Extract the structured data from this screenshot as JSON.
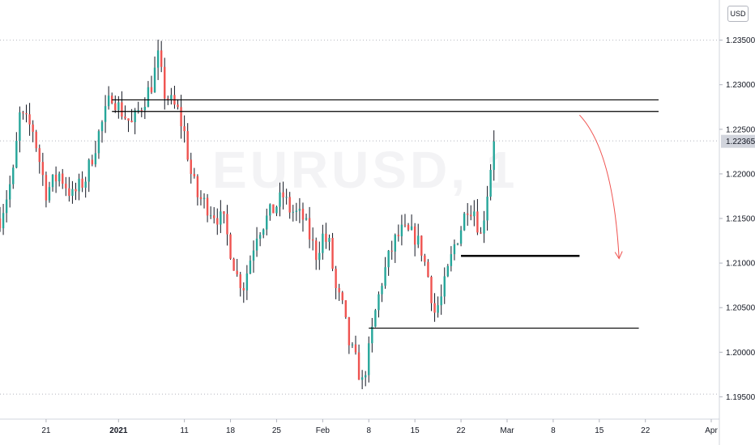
{
  "currency_button": "USD",
  "watermark": "EURUSD, 1",
  "colors": {
    "up": "#26a69a",
    "down": "#ef5350",
    "level_line": "#000000",
    "arrow": "#ef5350",
    "price_label_bg": "#d1d4dc",
    "grid": "#b2b5be"
  },
  "chart_data": {
    "type": "candlestick",
    "symbol": "EURUSD",
    "x_axis": {
      "range": [
        "2020-12-14",
        "2021-04-01"
      ],
      "tick_labels": [
        {
          "date": "2020-12-21",
          "label": "21",
          "bold": false
        },
        {
          "date": "2021-01-01",
          "label": "2021",
          "bold": true
        },
        {
          "date": "2021-01-11",
          "label": "11",
          "bold": false
        },
        {
          "date": "2021-01-18",
          "label": "18",
          "bold": false
        },
        {
          "date": "2021-01-25",
          "label": "25",
          "bold": false
        },
        {
          "date": "2021-02-01",
          "label": "Feb",
          "bold": false
        },
        {
          "date": "2021-02-08",
          "label": "8",
          "bold": false
        },
        {
          "date": "2021-02-15",
          "label": "15",
          "bold": false
        },
        {
          "date": "2021-02-22",
          "label": "22",
          "bold": false
        },
        {
          "date": "2021-03-01",
          "label": "Mar",
          "bold": false
        },
        {
          "date": "2021-03-08",
          "label": "8",
          "bold": false
        },
        {
          "date": "2021-03-15",
          "label": "15",
          "bold": false
        },
        {
          "date": "2021-03-22",
          "label": "22",
          "bold": false
        },
        {
          "date": "2021-04-01",
          "label": "Apr",
          "bold": false
        }
      ]
    },
    "y_axis": {
      "range": [
        1.1925,
        1.2395
      ],
      "tick_labels": [
        "1.23500",
        "1.23000",
        "1.22500",
        "1.22000",
        "1.21500",
        "1.21000",
        "1.20500",
        "1.20000",
        "1.19500"
      ],
      "tick_values": [
        1.235,
        1.23,
        1.225,
        1.22,
        1.215,
        1.21,
        1.205,
        1.2,
        1.195
      ]
    },
    "current_price": {
      "value": 1.22365,
      "label": "1.22365"
    },
    "dotted_levels": [
      1.235,
      1.2237,
      1.1953
    ],
    "price_path": [
      {
        "date": "2020-12-14",
        "price": 1.215
      },
      {
        "date": "2020-12-16",
        "price": 1.22
      },
      {
        "date": "2020-12-17",
        "price": 1.2265
      },
      {
        "date": "2020-12-19",
        "price": 1.225
      },
      {
        "date": "2020-12-21",
        "price": 1.218
      },
      {
        "date": "2020-12-23",
        "price": 1.22
      },
      {
        "date": "2020-12-25",
        "price": 1.2175
      },
      {
        "date": "2020-12-27",
        "price": 1.2195
      },
      {
        "date": "2020-12-29",
        "price": 1.2245
      },
      {
        "date": "2020-12-31",
        "price": 1.229
      },
      {
        "date": "2021-01-01",
        "price": 1.2275
      },
      {
        "date": "2021-01-03",
        "price": 1.2255
      },
      {
        "date": "2021-01-04",
        "price": 1.227
      },
      {
        "date": "2021-01-06",
        "price": 1.23
      },
      {
        "date": "2021-01-07",
        "price": 1.233
      },
      {
        "date": "2021-01-08",
        "price": 1.229
      },
      {
        "date": "2021-01-10",
        "price": 1.227
      },
      {
        "date": "2021-01-11",
        "price": 1.2245
      },
      {
        "date": "2021-01-12",
        "price": 1.22
      },
      {
        "date": "2021-01-13",
        "price": 1.2175
      },
      {
        "date": "2021-01-15",
        "price": 1.216
      },
      {
        "date": "2021-01-17",
        "price": 1.2145
      },
      {
        "date": "2021-01-19",
        "price": 1.2085
      },
      {
        "date": "2021-01-20",
        "price": 1.2075
      },
      {
        "date": "2021-01-21",
        "price": 1.2105
      },
      {
        "date": "2021-01-22",
        "price": 1.2135
      },
      {
        "date": "2021-01-24",
        "price": 1.2155
      },
      {
        "date": "2021-01-25",
        "price": 1.2165
      },
      {
        "date": "2021-01-26",
        "price": 1.2175
      },
      {
        "date": "2021-01-27",
        "price": 1.216
      },
      {
        "date": "2021-01-29",
        "price": 1.215
      },
      {
        "date": "2021-01-31",
        "price": 1.211
      },
      {
        "date": "2021-02-01",
        "price": 1.213
      },
      {
        "date": "2021-02-02",
        "price": 1.212
      },
      {
        "date": "2021-02-03",
        "price": 1.207
      },
      {
        "date": "2021-02-04",
        "price": 1.205
      },
      {
        "date": "2021-02-05",
        "price": 1.201
      },
      {
        "date": "2021-02-06",
        "price": 1.199
      },
      {
        "date": "2021-02-07",
        "price": 1.1965
      },
      {
        "date": "2021-02-08",
        "price": 1.2
      },
      {
        "date": "2021-02-09",
        "price": 1.2045
      },
      {
        "date": "2021-02-10",
        "price": 1.208
      },
      {
        "date": "2021-02-11",
        "price": 1.2105
      },
      {
        "date": "2021-02-12",
        "price": 1.2125
      },
      {
        "date": "2021-02-13",
        "price": 1.2135
      },
      {
        "date": "2021-02-15",
        "price": 1.213
      },
      {
        "date": "2021-02-16",
        "price": 1.2115
      },
      {
        "date": "2021-02-17",
        "price": 1.2085
      },
      {
        "date": "2021-02-18",
        "price": 1.2045
      },
      {
        "date": "2021-02-19",
        "price": 1.206
      },
      {
        "date": "2021-02-20",
        "price": 1.209
      },
      {
        "date": "2021-02-21",
        "price": 1.212
      },
      {
        "date": "2021-02-22",
        "price": 1.214
      },
      {
        "date": "2021-02-23",
        "price": 1.2165
      },
      {
        "date": "2021-02-24",
        "price": 1.216
      },
      {
        "date": "2021-02-25",
        "price": 1.213
      },
      {
        "date": "2021-02-26",
        "price": 1.218
      },
      {
        "date": "2021-02-27",
        "price": 1.2237
      }
    ],
    "horizontal_levels": [
      {
        "price": 1.2283,
        "from": "2020-12-31",
        "to": "2021-03-24"
      },
      {
        "price": 1.227,
        "from": "2020-12-31",
        "to": "2021-03-24"
      },
      {
        "price": 1.2108,
        "from": "2021-02-22",
        "to": "2021-03-12",
        "thick": true
      },
      {
        "price": 1.2027,
        "from": "2021-02-08",
        "to": "2021-03-21"
      }
    ],
    "arrow": {
      "from": {
        "date": "2021-03-12",
        "price": 1.2266
      },
      "to": {
        "date": "2021-03-18",
        "price": 1.2105
      }
    }
  }
}
